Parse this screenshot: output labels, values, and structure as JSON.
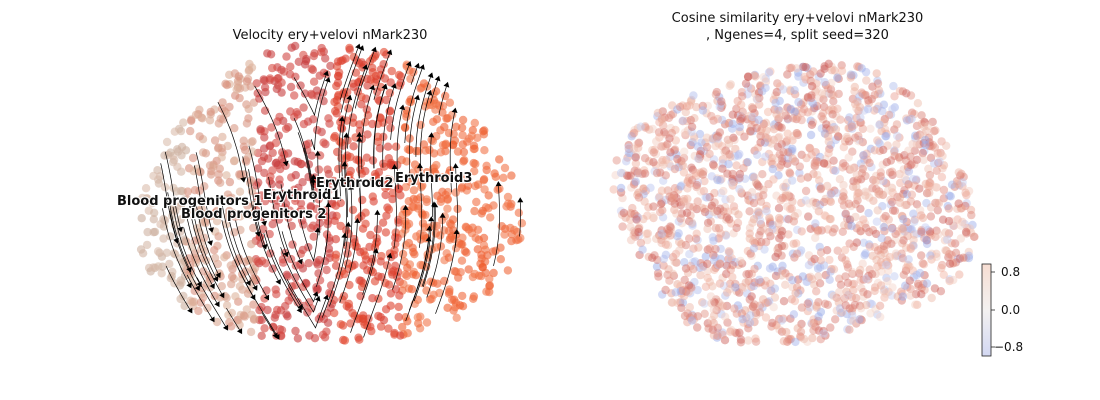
{
  "chart_data": [
    {
      "type": "scatter",
      "title": "Velocity ery+velovi nMark230",
      "subtitle": "",
      "overlay": "streamlines with arrowheads",
      "cluster_labels": [
        {
          "text": "Blood progenitors 1",
          "color": "#c9a690"
        },
        {
          "text": "Blood progenitors 2",
          "color": "#ddb7a0"
        },
        {
          "text": "Erythroid1",
          "color": "#c84540"
        },
        {
          "text": "Erythroid2",
          "color": "#d83a32"
        },
        {
          "text": "Erythroid3",
          "color": "#ef5324"
        }
      ],
      "axes_visible": false,
      "grid": false,
      "legend": "on data"
    },
    {
      "type": "scatter",
      "title": "Cosine similarity ery+velovi nMark230\n, Ngenes=4, split seed=320",
      "colorbar": {
        "ticks": [
          "0.8",
          "0.0",
          "−0.8"
        ],
        "range": [
          -1.0,
          1.0
        ],
        "colormap": "coolwarm"
      },
      "axes_visible": false,
      "grid": false
    }
  ]
}
